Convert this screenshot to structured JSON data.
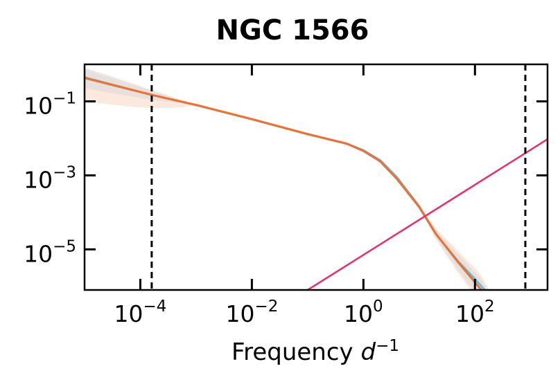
{
  "chart_data": {
    "type": "line",
    "title": "NGC 1566",
    "xlabel": {
      "prefix": "Frequency ",
      "symbol": "d",
      "exponent": "−1"
    },
    "ylabel": "",
    "x_scale": "log",
    "y_scale": "log",
    "xlim": [
      1e-05,
      2000
    ],
    "ylim": [
      8e-07,
      1.0
    ],
    "x_ticks": [
      {
        "value": 0.0001,
        "base": "10",
        "exp": "−4"
      },
      {
        "value": 0.01,
        "base": "10",
        "exp": "−2"
      },
      {
        "value": 1,
        "base": "10",
        "exp": "0"
      },
      {
        "value": 100,
        "base": "10",
        "exp": "2"
      }
    ],
    "y_ticks": [
      {
        "value": 0.1,
        "base": "10",
        "exp": "−1"
      },
      {
        "value": 0.001,
        "base": "10",
        "exp": "−3"
      },
      {
        "value": 1e-05,
        "base": "10",
        "exp": "−5"
      }
    ],
    "vlines": [
      0.00016,
      800
    ],
    "grid": false,
    "legend": "none",
    "colors": {
      "model_orange": "#E8733A",
      "model_blue": "#5BC0DE",
      "noise_pink": "#E6336F",
      "band_orange": "#FBE1D2",
      "band_gray": "#D9D9D9",
      "vline": "#000000"
    },
    "series": [
      {
        "color": "#5BC0DE",
        "x": [
          1e-05,
          0.00016,
          0.001,
          0.01,
          0.1,
          0.5,
          1,
          2,
          4,
          10,
          20,
          50,
          100,
          150
        ],
        "y": [
          0.45,
          0.15,
          0.08,
          0.033,
          0.013,
          0.0073,
          0.0048,
          0.0026,
          0.0009,
          0.00015,
          2.6e-05,
          4.8e-06,
          1.6e-06,
          8e-07
        ]
      },
      {
        "color": "#E8733A",
        "x": [
          1e-05,
          0.00016,
          0.001,
          0.01,
          0.1,
          0.5,
          1,
          2,
          4,
          10,
          20,
          50,
          100,
          130
        ],
        "y": [
          0.43,
          0.15,
          0.08,
          0.033,
          0.013,
          0.0072,
          0.0046,
          0.0024,
          0.0008,
          0.00014,
          2.6e-05,
          4.5e-06,
          1.3e-06,
          8e-07
        ]
      },
      {
        "color": "#E6336F",
        "x": [
          0.1,
          2000
        ],
        "y": [
          8e-07,
          0.0095
        ]
      }
    ]
  }
}
